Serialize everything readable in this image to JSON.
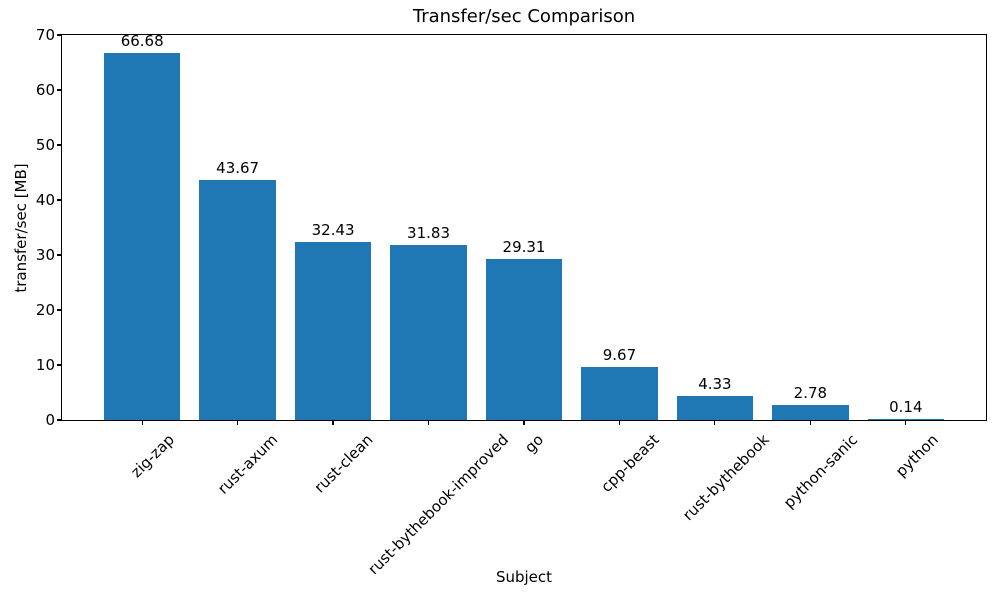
{
  "chart_data": {
    "type": "bar",
    "title": "Transfer/sec Comparison",
    "xlabel": "Subject",
    "ylabel": "transfer/sec [MB]",
    "categories": [
      "zig-zap",
      "rust-axum",
      "rust-clean",
      "rust-bythebook-improved",
      "go",
      "cpp-beast",
      "rust-bythebook",
      "python-sanic",
      "python"
    ],
    "values": [
      66.68,
      43.67,
      32.43,
      31.83,
      29.31,
      9.67,
      4.33,
      2.78,
      0.14
    ],
    "value_labels": [
      "66.68",
      "43.67",
      "32.43",
      "31.83",
      "29.31",
      "9.67",
      "4.33",
      "2.78",
      "0.14"
    ],
    "yticks": [
      0,
      10,
      20,
      30,
      40,
      50,
      60,
      70
    ],
    "ylim": [
      0,
      70
    ],
    "x_tick_rotation_deg": 45,
    "grid": false,
    "legend_position": "none",
    "bar_color": "#1f77b4",
    "text_color": "#000000",
    "background_color": "#ffffff"
  }
}
